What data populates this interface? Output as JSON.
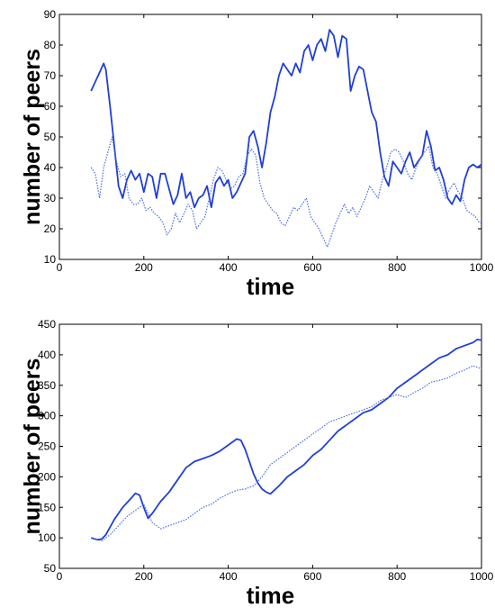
{
  "chart_data": [
    {
      "type": "line",
      "xlabel": "time",
      "ylabel": "number of peers",
      "xlim": [
        0,
        1000
      ],
      "ylim": [
        10,
        90
      ],
      "xticks": [
        0,
        200,
        400,
        600,
        800,
        1000
      ],
      "yticks": [
        10,
        20,
        30,
        40,
        50,
        60,
        70,
        80,
        90
      ],
      "grid": false,
      "series": [
        {
          "style": "solid",
          "color": "#1f3fd6",
          "x": [
            75,
            85,
            95,
            105,
            110,
            120,
            130,
            140,
            150,
            160,
            170,
            180,
            190,
            200,
            210,
            220,
            230,
            240,
            250,
            260,
            270,
            280,
            290,
            300,
            310,
            320,
            330,
            340,
            350,
            360,
            370,
            380,
            390,
            400,
            410,
            420,
            430,
            440,
            450,
            460,
            470,
            480,
            490,
            500,
            510,
            520,
            530,
            540,
            550,
            560,
            570,
            580,
            590,
            600,
            610,
            620,
            630,
            640,
            650,
            660,
            670,
            680,
            690,
            700,
            710,
            720,
            730,
            740,
            750,
            760,
            770,
            780,
            790,
            800,
            810,
            820,
            830,
            840,
            850,
            860,
            870,
            880,
            890,
            900,
            910,
            920,
            930,
            940,
            950,
            960,
            970,
            980,
            990,
            1000
          ],
          "y": [
            65,
            68,
            71,
            74,
            72,
            60,
            47,
            34,
            30,
            36,
            39,
            36,
            38,
            32,
            38,
            37,
            30,
            38,
            38,
            33,
            28,
            31,
            38,
            30,
            32,
            27,
            30,
            31,
            34,
            27,
            35,
            37,
            34,
            36,
            30,
            32,
            35,
            38,
            50,
            52,
            47,
            40,
            48,
            58,
            63,
            70,
            74,
            72,
            70,
            74,
            71,
            78,
            80,
            75,
            80,
            82,
            78,
            85,
            83,
            76,
            83,
            82,
            65,
            70,
            73,
            72,
            65,
            58,
            55,
            45,
            37,
            34,
            42,
            40,
            38,
            42,
            45,
            40,
            42,
            44,
            52,
            47,
            39,
            40,
            36,
            30,
            28,
            31,
            29,
            36,
            40,
            41,
            40,
            41
          ]
        },
        {
          "style": "dotted",
          "color": "#4a6ae0",
          "x": [
            75,
            85,
            95,
            105,
            115,
            125,
            135,
            145,
            155,
            165,
            175,
            185,
            195,
            205,
            215,
            225,
            235,
            245,
            255,
            265,
            275,
            285,
            295,
            305,
            315,
            325,
            335,
            345,
            355,
            365,
            375,
            385,
            395,
            405,
            415,
            425,
            435,
            445,
            455,
            465,
            475,
            485,
            495,
            505,
            515,
            525,
            535,
            545,
            555,
            565,
            575,
            585,
            595,
            605,
            615,
            625,
            635,
            645,
            655,
            665,
            675,
            685,
            695,
            705,
            715,
            725,
            735,
            745,
            755,
            765,
            775,
            785,
            795,
            805,
            815,
            825,
            835,
            845,
            855,
            865,
            875,
            885,
            895,
            905,
            915,
            925,
            935,
            945,
            955,
            965,
            975,
            985,
            995,
            1000
          ],
          "y": [
            40,
            38,
            30,
            40,
            45,
            50,
            42,
            37,
            38,
            30,
            28,
            28,
            30,
            26,
            27,
            25,
            24,
            22,
            18,
            20,
            25,
            22,
            25,
            28,
            26,
            20,
            22,
            24,
            30,
            36,
            40,
            39,
            36,
            33,
            34,
            37,
            38,
            44,
            46,
            44,
            35,
            30,
            28,
            26,
            25,
            22,
            21,
            24,
            27,
            26,
            28,
            30,
            24,
            22,
            20,
            17,
            14,
            18,
            22,
            25,
            28,
            25,
            27,
            24,
            27,
            30,
            34,
            32,
            30,
            36,
            40,
            45,
            46,
            45,
            42,
            38,
            36,
            40,
            43,
            45,
            47,
            40,
            38,
            34,
            30,
            33,
            35,
            32,
            30,
            26,
            25,
            24,
            22,
            22
          ]
        }
      ]
    },
    {
      "type": "line",
      "xlabel": "time",
      "ylabel": "number of peers",
      "xlim": [
        0,
        1000
      ],
      "ylim": [
        50,
        450
      ],
      "xticks": [
        0,
        200,
        400,
        600,
        800,
        1000
      ],
      "yticks": [
        50,
        100,
        150,
        200,
        250,
        300,
        350,
        400,
        450
      ],
      "grid": false,
      "series": [
        {
          "style": "solid",
          "color": "#1f3fd6",
          "x": [
            75,
            90,
            100,
            110,
            130,
            150,
            170,
            180,
            190,
            200,
            210,
            220,
            240,
            260,
            280,
            300,
            320,
            340,
            360,
            380,
            400,
            420,
            430,
            440,
            450,
            460,
            470,
            480,
            490,
            500,
            520,
            540,
            560,
            580,
            600,
            620,
            640,
            660,
            680,
            700,
            720,
            740,
            760,
            780,
            800,
            820,
            840,
            860,
            880,
            900,
            920,
            940,
            960,
            980,
            990,
            1000
          ],
          "y": [
            100,
            97,
            98,
            105,
            130,
            150,
            165,
            173,
            170,
            150,
            132,
            140,
            160,
            175,
            195,
            215,
            225,
            230,
            235,
            242,
            252,
            262,
            260,
            245,
            225,
            205,
            190,
            180,
            175,
            172,
            185,
            200,
            210,
            220,
            235,
            245,
            260,
            275,
            285,
            295,
            305,
            310,
            320,
            330,
            345,
            355,
            365,
            375,
            385,
            395,
            400,
            410,
            415,
            420,
            425,
            424
          ]
        },
        {
          "style": "dotted",
          "color": "#4a6ae0",
          "x": [
            75,
            90,
            100,
            120,
            140,
            160,
            180,
            200,
            220,
            240,
            260,
            280,
            300,
            320,
            340,
            360,
            380,
            400,
            420,
            440,
            460,
            480,
            500,
            520,
            540,
            560,
            580,
            600,
            620,
            640,
            660,
            680,
            700,
            720,
            740,
            760,
            780,
            800,
            820,
            840,
            860,
            880,
            900,
            920,
            940,
            960,
            980,
            1000
          ],
          "y": [
            100,
            97,
            95,
            105,
            120,
            135,
            145,
            155,
            125,
            115,
            120,
            125,
            130,
            140,
            150,
            155,
            165,
            172,
            178,
            180,
            185,
            200,
            220,
            230,
            240,
            250,
            260,
            270,
            280,
            290,
            295,
            300,
            305,
            310,
            315,
            325,
            330,
            335,
            330,
            338,
            345,
            355,
            358,
            362,
            370,
            375,
            382,
            377
          ]
        }
      ]
    }
  ]
}
